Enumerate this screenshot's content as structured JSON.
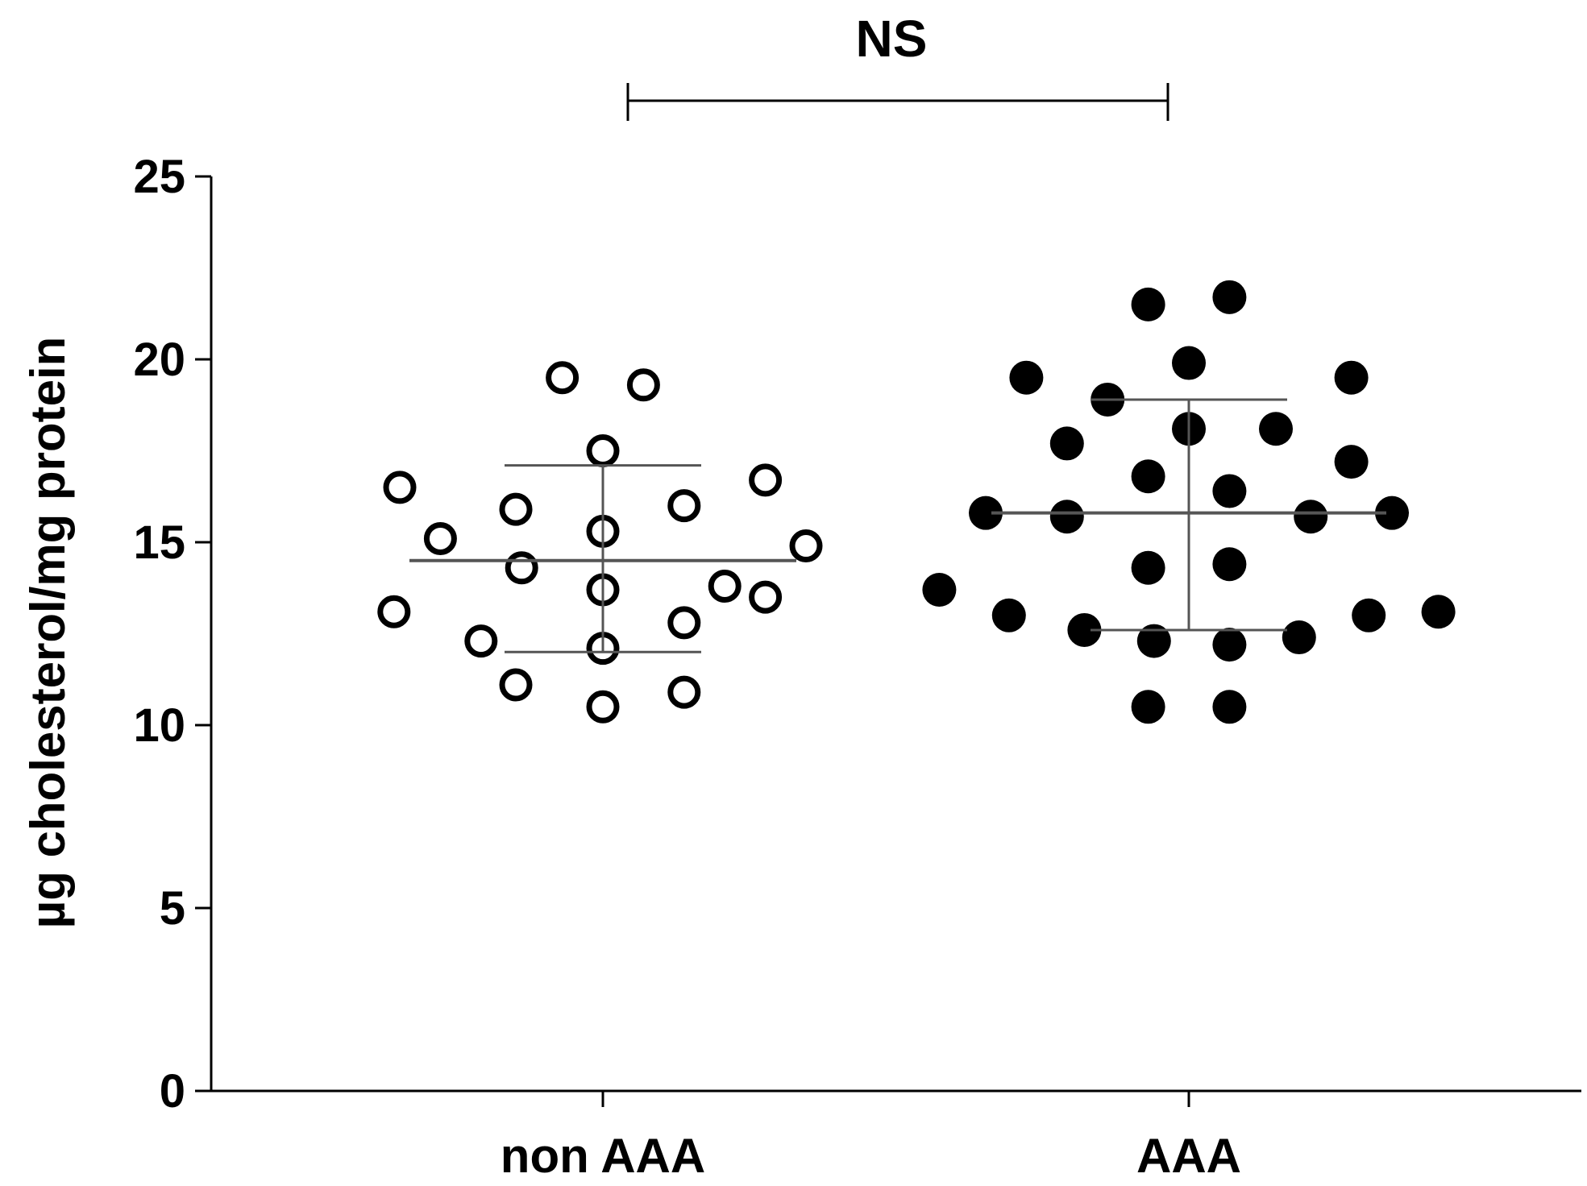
{
  "chart_data": {
    "type": "scatter",
    "ylabel": "µg cholesterol/mg protein",
    "xlabel": "",
    "ylim": [
      0,
      25
    ],
    "yticks": [
      "0",
      "5",
      "10",
      "15",
      "20",
      "25"
    ],
    "categories": [
      "non AAA",
      "AAA"
    ],
    "significance": {
      "label": "NS",
      "between": [
        "non AAA",
        "AAA"
      ]
    },
    "grid": false,
    "series": [
      {
        "category": "non AAA",
        "marker": "open-circle",
        "mean": 14.5,
        "sd_upper": 17.1,
        "sd_lower": 12.0,
        "points": [
          {
            "offset": -0.07,
            "y": 19.5
          },
          {
            "offset": 0.07,
            "y": 19.3
          },
          {
            "offset": 0.0,
            "y": 17.5
          },
          {
            "offset": -0.35,
            "y": 16.5
          },
          {
            "offset": 0.28,
            "y": 16.7
          },
          {
            "offset": -0.15,
            "y": 15.9
          },
          {
            "offset": 0.14,
            "y": 16.0
          },
          {
            "offset": -0.28,
            "y": 15.1
          },
          {
            "offset": 0.0,
            "y": 15.3
          },
          {
            "offset": 0.35,
            "y": 14.9
          },
          {
            "offset": -0.14,
            "y": 14.3
          },
          {
            "offset": 0.0,
            "y": 13.7
          },
          {
            "offset": 0.21,
            "y": 13.8
          },
          {
            "offset": 0.28,
            "y": 13.5
          },
          {
            "offset": -0.36,
            "y": 13.1
          },
          {
            "offset": 0.14,
            "y": 12.8
          },
          {
            "offset": -0.21,
            "y": 12.3
          },
          {
            "offset": 0.0,
            "y": 12.1
          },
          {
            "offset": -0.15,
            "y": 11.1
          },
          {
            "offset": 0.14,
            "y": 10.9
          },
          {
            "offset": 0.0,
            "y": 10.5
          }
        ]
      },
      {
        "category": "AAA",
        "marker": "filled-circle",
        "mean": 15.8,
        "sd_upper": 18.9,
        "sd_lower": 12.6,
        "points": [
          {
            "offset": -0.07,
            "y": 21.5
          },
          {
            "offset": 0.07,
            "y": 21.7
          },
          {
            "offset": 0.0,
            "y": 19.9
          },
          {
            "offset": -0.28,
            "y": 19.5
          },
          {
            "offset": 0.28,
            "y": 19.5
          },
          {
            "offset": -0.14,
            "y": 18.9
          },
          {
            "offset": -0.21,
            "y": 17.7
          },
          {
            "offset": 0.0,
            "y": 18.1
          },
          {
            "offset": 0.15,
            "y": 18.1
          },
          {
            "offset": 0.28,
            "y": 17.2
          },
          {
            "offset": -0.07,
            "y": 16.8
          },
          {
            "offset": 0.07,
            "y": 16.4
          },
          {
            "offset": -0.35,
            "y": 15.8
          },
          {
            "offset": -0.21,
            "y": 15.7
          },
          {
            "offset": 0.21,
            "y": 15.7
          },
          {
            "offset": 0.35,
            "y": 15.8
          },
          {
            "offset": -0.07,
            "y": 14.3
          },
          {
            "offset": 0.07,
            "y": 14.4
          },
          {
            "offset": -0.43,
            "y": 13.7
          },
          {
            "offset": -0.31,
            "y": 13.0
          },
          {
            "offset": -0.18,
            "y": 12.6
          },
          {
            "offset": -0.06,
            "y": 12.3
          },
          {
            "offset": 0.07,
            "y": 12.2
          },
          {
            "offset": 0.19,
            "y": 12.4
          },
          {
            "offset": 0.31,
            "y": 13.0
          },
          {
            "offset": 0.43,
            "y": 13.1
          },
          {
            "offset": -0.07,
            "y": 10.5
          },
          {
            "offset": 0.07,
            "y": 10.5
          }
        ]
      }
    ]
  }
}
